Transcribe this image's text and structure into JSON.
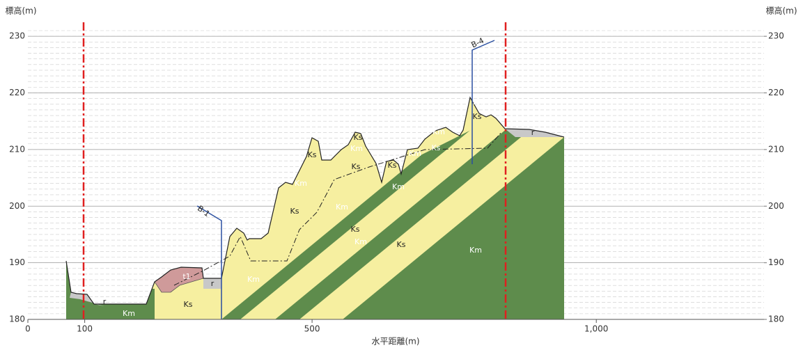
{
  "chart_data": {
    "type": "cross-section",
    "y_label": "標高(m)",
    "y2_label": "標高(m)",
    "x_label": "水平距離(m)",
    "xlim": [
      0,
      1295
    ],
    "xticks": [
      0,
      100,
      500,
      {
        "value": 1000,
        "label": "1,000"
      }
    ],
    "ylim": [
      180,
      231
    ],
    "yticks": [
      180,
      190,
      200,
      210,
      220,
      230
    ],
    "y2lim": [
      180,
      231
    ],
    "y2ticks": [
      180,
      190,
      200,
      210,
      220,
      230
    ],
    "annotations": [
      "Km",
      "Ks",
      "r",
      "t1",
      "r",
      "Km",
      "Km",
      "B-1",
      "Ks",
      "Km",
      "Ks",
      "Km",
      "Ks",
      "Km",
      "Ks",
      "Km",
      "Ks",
      "Km",
      "Ks",
      "Ks",
      "Km",
      "Km",
      "Km",
      "Ks",
      "Km",
      "Ks",
      "r",
      "B-4"
    ]
  }
}
